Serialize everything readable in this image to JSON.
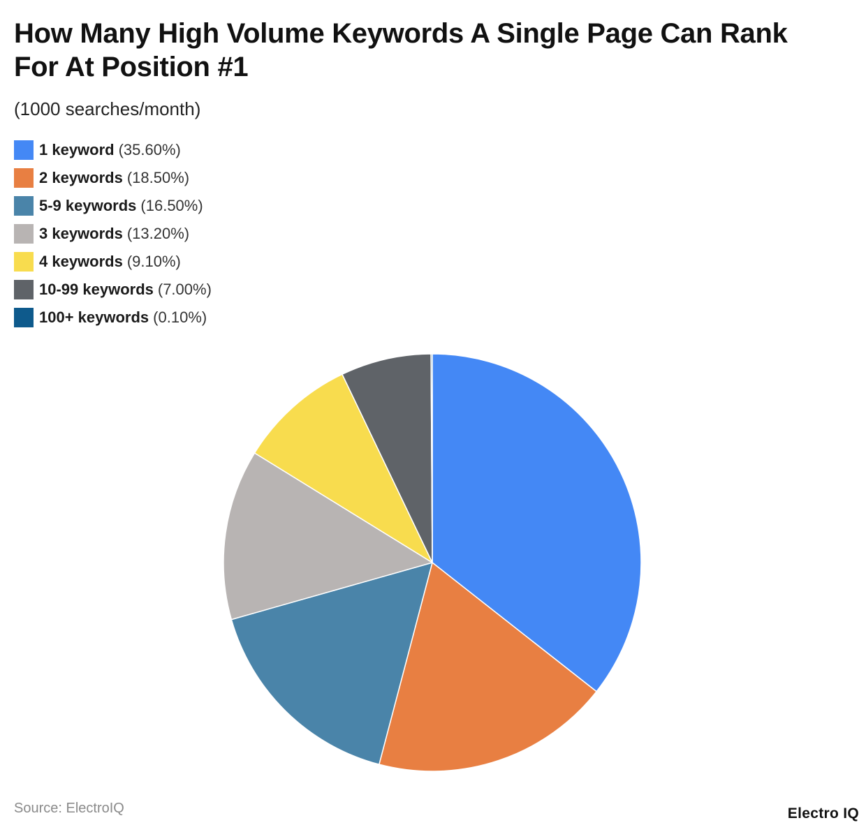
{
  "chart": {
    "title": "How Many High Volume Keywords A Single Page Can Rank For At Position #1",
    "subtitle": "(1000 searches/month)",
    "source": "Source: ElectroIQ",
    "brand": "Electro IQ"
  },
  "chart_data": {
    "type": "pie",
    "title": "How Many High Volume Keywords A Single Page Can Rank For At Position #1",
    "subtitle": "(1000 searches/month)",
    "unit": "%",
    "legend_position": "top-left",
    "start_angle": "12 o'clock",
    "direction": "clockwise",
    "slices": [
      {
        "label": "1 keyword",
        "pct_label": "(35.60%)",
        "value": 35.6,
        "color": "#4488F5"
      },
      {
        "label": "2 keywords",
        "pct_label": "(18.50%)",
        "value": 18.5,
        "color": "#E87F42"
      },
      {
        "label": "5-9 keywords",
        "pct_label": "(16.50%)",
        "value": 16.5,
        "color": "#4A84A9"
      },
      {
        "label": "3 keywords",
        "pct_label": "(13.20%)",
        "value": 13.2,
        "color": "#B8B4B3"
      },
      {
        "label": "4 keywords",
        "pct_label": "(9.10%)",
        "value": 9.1,
        "color": "#F8DC4E"
      },
      {
        "label": "10-99 keywords",
        "pct_label": "(7.00%)",
        "value": 7.0,
        "color": "#5F6368"
      },
      {
        "label": "100+ keywords",
        "pct_label": "(0.10%)",
        "value": 0.1,
        "color": "#0E5A8C"
      }
    ]
  }
}
